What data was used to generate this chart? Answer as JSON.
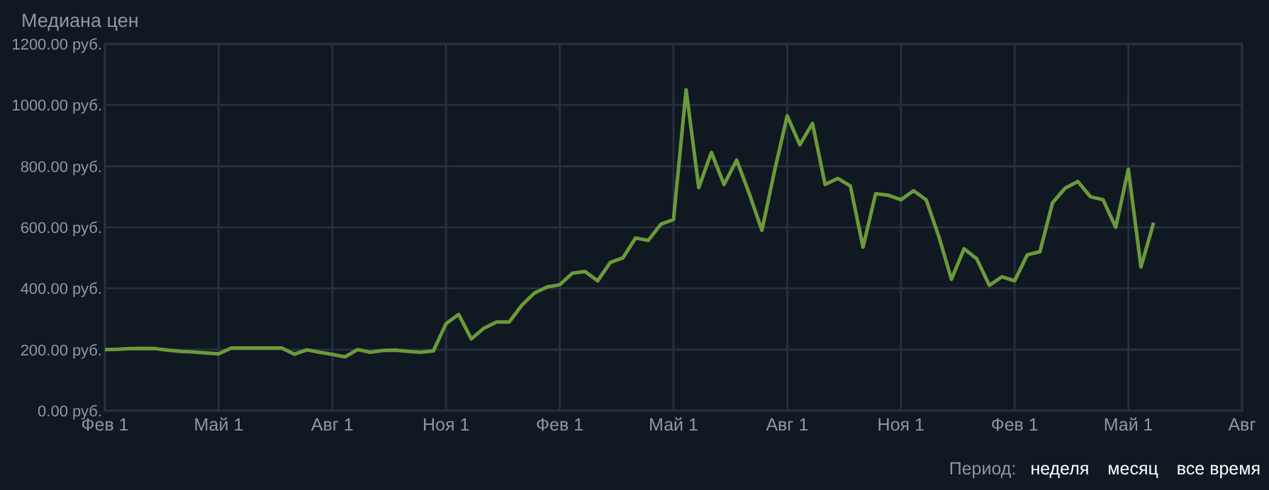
{
  "chart_data": {
    "type": "line",
    "title": "Медиана цен",
    "annotations": [
      "Период:",
      "неделя",
      "месяц",
      "все время"
    ],
    "categories": [
      "Фев 1",
      null,
      null,
      null,
      null,
      null,
      null,
      null,
      null,
      "Май 1",
      null,
      null,
      null,
      null,
      null,
      null,
      null,
      null,
      "Авг 1",
      null,
      null,
      null,
      null,
      null,
      null,
      null,
      null,
      "Ноя 1",
      null,
      null,
      null,
      null,
      null,
      null,
      null,
      null,
      "Фев 1",
      null,
      null,
      null,
      null,
      null,
      null,
      null,
      null,
      "Май 1",
      null,
      null,
      null,
      null,
      null,
      null,
      null,
      null,
      "Авг 1",
      null,
      null,
      null,
      null,
      null,
      null,
      null,
      null,
      "Ноя 1",
      null,
      null,
      null,
      null,
      null,
      null,
      null,
      null,
      "Фев 1",
      null,
      null,
      null,
      null,
      null,
      null,
      null,
      null,
      "Май 1",
      null,
      null,
      null,
      null,
      null,
      null,
      null,
      null,
      "Авг"
    ],
    "series": [
      {
        "color": "#6b9a3a",
        "values": [
          200,
          201,
          203,
          204,
          203,
          198,
          194,
          192,
          189,
          186,
          205,
          205,
          205,
          205,
          205,
          185,
          199,
          191,
          184,
          176,
          200,
          191,
          197,
          198,
          194,
          191,
          196,
          285,
          315,
          235,
          270,
          290,
          290,
          345,
          385,
          405,
          412,
          450,
          455,
          425,
          485,
          500,
          565,
          557,
          610,
          625,
          1050,
          730,
          845,
          740,
          820,
          710,
          590,
          785,
          965,
          870,
          940,
          740,
          760,
          735,
          535,
          710,
          705,
          690,
          720,
          690,
          570,
          430,
          530,
          497,
          410,
          438,
          425,
          510,
          520,
          680,
          728,
          750,
          700,
          690,
          600,
          790,
          470,
          615,
          null,
          null,
          null,
          null,
          null,
          null,
          null
        ]
      }
    ],
    "ylim": [
      0,
      1200
    ],
    "yticks": [
      {
        "value": 0,
        "label": "0.00 руб."
      },
      {
        "value": 200,
        "label": "200.00 руб."
      },
      {
        "value": 400,
        "label": "400.00 руб."
      },
      {
        "value": 600,
        "label": "600.00 руб."
      },
      {
        "value": 800,
        "label": "800.00 руб."
      },
      {
        "value": 1000,
        "label": "1000.00 руб."
      },
      {
        "value": 1200,
        "label": "1200.00 руб."
      }
    ],
    "grid": true,
    "marker": "none",
    "line_style": "solid"
  }
}
